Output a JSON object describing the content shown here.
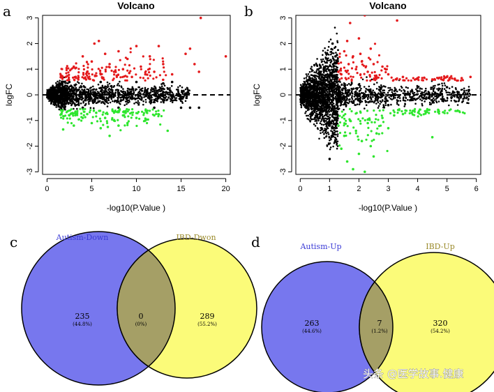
{
  "colors": {
    "up": "#e41a1c",
    "down": "#2ee62e",
    "ns": "#000000",
    "venn_left": "#7777ee",
    "venn_right": "#fbfb79",
    "venn_overlap": "#a59f66",
    "label_left": "#3b3bd6",
    "label_right": "#9a8a2a"
  },
  "panels": {
    "a": {
      "letter": "a"
    },
    "b": {
      "letter": "b"
    },
    "c": {
      "letter": "c"
    },
    "d": {
      "letter": "d"
    }
  },
  "chart_data": [
    {
      "type": "scatter",
      "panel": "a",
      "title": "Volcano",
      "xlabel": "-log10(P.Value )",
      "ylabel": "logFC",
      "xlim": [
        -0.5,
        20.5
      ],
      "ylim": [
        -3.1,
        3.1
      ],
      "xticks": [
        0,
        5,
        10,
        15,
        20
      ],
      "yticks": [
        -3,
        -2,
        -1,
        0,
        1,
        2,
        3
      ],
      "hline": 0,
      "series": [
        {
          "class": "up",
          "points": [
            [
              2.1,
              0.7
            ],
            [
              3.0,
              1.1
            ],
            [
              3.5,
              0.6
            ],
            [
              4.0,
              1.5
            ],
            [
              4.5,
              0.9
            ],
            [
              5.0,
              1.3
            ],
            [
              5.3,
              2.0
            ],
            [
              5.8,
              2.1
            ],
            [
              6.0,
              0.8
            ],
            [
              6.5,
              1.6
            ],
            [
              7.0,
              1.2
            ],
            [
              7.5,
              0.9
            ],
            [
              8.0,
              1.7
            ],
            [
              8.5,
              1.0
            ],
            [
              9.0,
              1.4
            ],
            [
              9.5,
              0.7
            ],
            [
              10.0,
              1.9
            ],
            [
              10.5,
              1.1
            ],
            [
              11.0,
              0.8
            ],
            [
              11.5,
              1.5
            ],
            [
              12.0,
              0.9
            ],
            [
              12.5,
              1.9
            ],
            [
              13.0,
              1.2
            ],
            [
              14.0,
              0.8
            ],
            [
              15.5,
              1.6
            ],
            [
              16.0,
              1.8
            ],
            [
              16.5,
              1.2
            ],
            [
              17.0,
              0.9
            ],
            [
              17.2,
              3.0
            ],
            [
              20.0,
              1.5
            ],
            [
              6.2,
              0.65
            ],
            [
              7.8,
              0.75
            ],
            [
              4.8,
              0.62
            ],
            [
              9.2,
              0.85
            ],
            [
              3.2,
              0.7
            ]
          ]
        },
        {
          "class": "down",
          "points": [
            [
              1.8,
              -1.35
            ],
            [
              2.5,
              -0.8
            ],
            [
              3.0,
              -1.2
            ],
            [
              4.0,
              -0.9
            ],
            [
              5.0,
              -1.1
            ],
            [
              5.5,
              -0.7
            ],
            [
              6.0,
              -1.3
            ],
            [
              6.5,
              -0.9
            ],
            [
              7.0,
              -1.6
            ],
            [
              7.5,
              -1.0
            ],
            [
              8.0,
              -1.2
            ],
            [
              8.5,
              -0.8
            ],
            [
              9.0,
              -1.1
            ],
            [
              10.0,
              -0.9
            ],
            [
              11.0,
              -1.0
            ],
            [
              12.0,
              -0.8
            ],
            [
              13.5,
              -1.4
            ],
            [
              4.5,
              -0.75
            ],
            [
              8.8,
              -0.7
            ],
            [
              6.8,
              -1.25
            ]
          ]
        },
        {
          "class": "ns",
          "points": [
            [
              0.3,
              0.2
            ],
            [
              0.8,
              -0.3
            ],
            [
              1.5,
              0.4
            ],
            [
              2.5,
              0.5
            ],
            [
              4.0,
              -0.5
            ],
            [
              6.0,
              0.5
            ],
            [
              8.0,
              -0.5
            ],
            [
              10.0,
              0.5
            ],
            [
              12.0,
              -0.5
            ],
            [
              14.0,
              0.5
            ],
            [
              16.0,
              -0.5
            ],
            [
              17.0,
              -0.5
            ],
            [
              15.0,
              -0.5
            ],
            [
              13.0,
              0.45
            ]
          ]
        }
      ]
    },
    {
      "type": "scatter",
      "panel": "b",
      "title": "Volcano",
      "xlabel": "-log10(P.Value )",
      "ylabel": "logFC",
      "xlim": [
        -0.15,
        6.15
      ],
      "ylim": [
        -3.1,
        3.1
      ],
      "xticks": [
        0,
        1,
        2,
        3,
        4,
        5,
        6
      ],
      "yticks": [
        -3,
        -2,
        -1,
        0,
        1,
        2,
        3
      ],
      "hline": 0,
      "series": [
        {
          "class": "up",
          "points": [
            [
              1.4,
              0.8
            ],
            [
              1.5,
              1.7
            ],
            [
              1.6,
              2.1
            ],
            [
              1.7,
              2.8
            ],
            [
              1.8,
              1.5
            ],
            [
              1.9,
              1.0
            ],
            [
              2.0,
              2.2
            ],
            [
              2.1,
              1.3
            ],
            [
              2.2,
              3.1
            ],
            [
              2.3,
              0.9
            ],
            [
              2.4,
              1.8
            ],
            [
              2.6,
              0.7
            ],
            [
              2.8,
              1.1
            ],
            [
              3.0,
              0.8
            ],
            [
              3.3,
              2.9
            ],
            [
              3.5,
              0.7
            ],
            [
              4.0,
              0.65
            ],
            [
              4.5,
              0.6
            ],
            [
              5.0,
              0.7
            ],
            [
              5.5,
              0.65
            ],
            [
              5.8,
              0.7
            ],
            [
              2.5,
              1.2
            ],
            [
              1.3,
              0.9
            ],
            [
              1.65,
              1.2
            ],
            [
              2.05,
              1.6
            ]
          ]
        },
        {
          "class": "down",
          "points": [
            [
              1.3,
              -1.2
            ],
            [
              1.4,
              -2.1
            ],
            [
              1.5,
              -1.6
            ],
            [
              1.6,
              -2.6
            ],
            [
              1.7,
              -1.0
            ],
            [
              1.8,
              -2.9
            ],
            [
              1.9,
              -1.4
            ],
            [
              2.0,
              -2.3
            ],
            [
              2.1,
              -1.8
            ],
            [
              2.2,
              -3.0
            ],
            [
              2.3,
              -1.1
            ],
            [
              2.4,
              -2.0
            ],
            [
              2.6,
              -1.5
            ],
            [
              2.8,
              -0.9
            ],
            [
              3.0,
              -1.3
            ],
            [
              3.2,
              -0.8
            ],
            [
              3.5,
              -0.75
            ],
            [
              3.8,
              -0.7
            ],
            [
              4.5,
              -1.65
            ],
            [
              2.5,
              -2.4
            ]
          ]
        },
        {
          "class": "ns",
          "points": [
            [
              0.2,
              0.3
            ],
            [
              0.5,
              -0.5
            ],
            [
              0.8,
              1.0
            ],
            [
              1.0,
              -1.2
            ],
            [
              1.1,
              2.0
            ],
            [
              1.0,
              -2.5
            ],
            [
              2.0,
              0.4
            ],
            [
              3.0,
              -0.4
            ],
            [
              4.0,
              0.3
            ],
            [
              5.0,
              0.3
            ],
            [
              1.2,
              1.5
            ],
            [
              1.2,
              -1.8
            ]
          ]
        }
      ]
    },
    {
      "type": "venn",
      "panel": "c",
      "sets": [
        {
          "name": "Autism-Down",
          "only_count": "235",
          "only_pct": "(44.8%)"
        },
        {
          "name": "IBD-Dwon",
          "only_count": "289",
          "only_pct": "(55.2%)"
        }
      ],
      "overlap": {
        "count": "0",
        "pct": "(0%)"
      }
    },
    {
      "type": "venn",
      "panel": "d",
      "sets": [
        {
          "name": "Autism-Up",
          "only_count": "263",
          "only_pct": "(44.6%)"
        },
        {
          "name": "IBD-Up",
          "only_count": "320",
          "only_pct": "(54.2%)"
        }
      ],
      "overlap": {
        "count": "7",
        "pct": "(1.2%)"
      }
    }
  ],
  "watermark": {
    "text": "头条 @医学故事.健康"
  }
}
